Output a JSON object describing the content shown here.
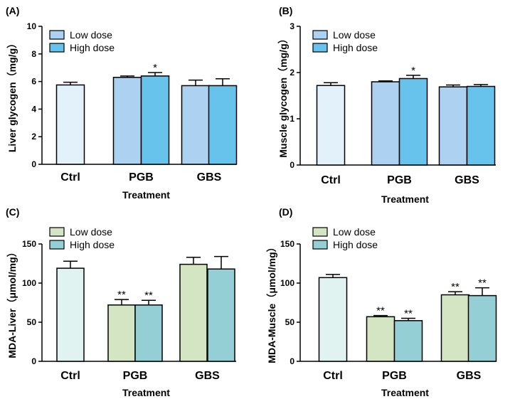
{
  "chart_data": [
    {
      "panel": "(A)",
      "type": "bar",
      "ylabel": "Liver glycogen（mg/g）",
      "xlabel": "Treatment",
      "ylim": [
        0,
        10
      ],
      "yticks": [
        "0",
        "2",
        "4",
        "6",
        "8",
        "10"
      ],
      "legend": [
        "Low dose",
        "High dose"
      ],
      "colors": {
        "ctrl": "#e3f1fb",
        "low": "#acd1f1",
        "high": "#67c3ec",
        "legend_low": "#acd1f1",
        "legend_high": "#67c3ec"
      },
      "groups": [
        {
          "label": "Ctrl",
          "bars": [
            {
              "series": "Ctrl",
              "value": 5.75,
              "err": 0.2,
              "sig": ""
            }
          ]
        },
        {
          "label": "PGB",
          "bars": [
            {
              "series": "Low dose",
              "value": 6.3,
              "err": 0.1,
              "sig": ""
            },
            {
              "series": "High dose",
              "value": 6.4,
              "err": 0.25,
              "sig": "*"
            }
          ]
        },
        {
          "label": "GBS",
          "bars": [
            {
              "series": "Low dose",
              "value": 5.7,
              "err": 0.4,
              "sig": ""
            },
            {
              "series": "High dose",
              "value": 5.7,
              "err": 0.5,
              "sig": ""
            }
          ]
        }
      ]
    },
    {
      "panel": "(B)",
      "type": "bar",
      "ylabel": "Muscle glycogen（mg/g）",
      "xlabel": "Treatment",
      "ylim": [
        0,
        3
      ],
      "yticks": [
        "0",
        "1",
        "2",
        "3"
      ],
      "legend": [
        "Low dose",
        "High dose"
      ],
      "colors": {
        "ctrl": "#e3f1fb",
        "low": "#acd1f1",
        "high": "#67c3ec",
        "legend_low": "#acd1f1",
        "legend_high": "#67c3ec"
      },
      "groups": [
        {
          "label": "Ctrl",
          "bars": [
            {
              "series": "Ctrl",
              "value": 1.72,
              "err": 0.06,
              "sig": ""
            }
          ]
        },
        {
          "label": "PGB",
          "bars": [
            {
              "series": "Low dose",
              "value": 1.8,
              "err": 0.02,
              "sig": ""
            },
            {
              "series": "High dose",
              "value": 1.87,
              "err": 0.07,
              "sig": "*"
            }
          ]
        },
        {
          "label": "GBS",
          "bars": [
            {
              "series": "Low dose",
              "value": 1.69,
              "err": 0.04,
              "sig": ""
            },
            {
              "series": "High dose",
              "value": 1.7,
              "err": 0.04,
              "sig": ""
            }
          ]
        }
      ]
    },
    {
      "panel": "(C)",
      "type": "bar",
      "ylabel": "MDA-Liver（μmol/mg）",
      "xlabel": "Treatment",
      "ylim": [
        0,
        150
      ],
      "yticks": [
        "0",
        "50",
        "100",
        "150"
      ],
      "legend": [
        "Low dose",
        "High dose"
      ],
      "colors": {
        "ctrl": "#e1f3f0",
        "low": "#d3e5c3",
        "high": "#95cfd6",
        "legend_low": "#d3e5c3",
        "legend_high": "#95cfd6"
      },
      "groups": [
        {
          "label": "Ctrl",
          "bars": [
            {
              "series": "Ctrl",
              "value": 119,
              "err": 9,
              "sig": ""
            }
          ]
        },
        {
          "label": "PGB",
          "bars": [
            {
              "series": "Low dose",
              "value": 72,
              "err": 7,
              "sig": "**"
            },
            {
              "series": "High dose",
              "value": 72,
              "err": 6,
              "sig": "**"
            }
          ]
        },
        {
          "label": "GBS",
          "bars": [
            {
              "series": "Low dose",
              "value": 124,
              "err": 9,
              "sig": ""
            },
            {
              "series": "High dose",
              "value": 118,
              "err": 16,
              "sig": ""
            }
          ]
        }
      ]
    },
    {
      "panel": "(D)",
      "type": "bar",
      "ylabel": "MDA-Muscle（μmol/mg）",
      "xlabel": "Treatment",
      "ylim": [
        0,
        150
      ],
      "yticks": [
        "0",
        "50",
        "100",
        "150"
      ],
      "legend": [
        "Low dose",
        "High dose"
      ],
      "colors": {
        "ctrl": "#e1f3f0",
        "low": "#d3e5c3",
        "high": "#95cfd6",
        "legend_low": "#d3e5c3",
        "legend_high": "#95cfd6"
      },
      "groups": [
        {
          "label": "Ctrl",
          "bars": [
            {
              "series": "Ctrl",
              "value": 107,
              "err": 4,
              "sig": ""
            }
          ]
        },
        {
          "label": "PGB",
          "bars": [
            {
              "series": "Low dose",
              "value": 57,
              "err": 1.5,
              "sig": "**"
            },
            {
              "series": "High dose",
              "value": 52,
              "err": 3,
              "sig": "**"
            }
          ]
        },
        {
          "label": "GBS",
          "bars": [
            {
              "series": "Low dose",
              "value": 85,
              "err": 4,
              "sig": "**"
            },
            {
              "series": "High dose",
              "value": 84,
              "err": 10,
              "sig": "**"
            }
          ]
        }
      ]
    }
  ]
}
